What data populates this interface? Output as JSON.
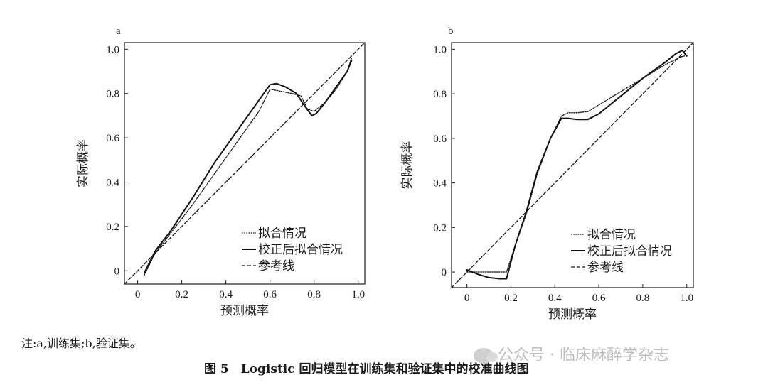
{
  "chart_data": [
    {
      "type": "line",
      "panel_label": "a",
      "xlabel": "预测概率",
      "ylabel": "实际概率",
      "xlim": [
        -0.06,
        1.03
      ],
      "ylim": [
        -0.06,
        1.03
      ],
      "xticks": [
        0,
        0.2,
        0.4,
        0.6,
        0.8,
        1.0
      ],
      "xtick_labels": [
        "0",
        "0.2",
        "0.4",
        "0.6",
        "0.8",
        "1.0"
      ],
      "yticks": [
        0,
        0.2,
        0.4,
        0.6,
        0.8,
        1.0
      ],
      "ytick_labels": [
        "0",
        "0.2",
        "0.4",
        "0.6",
        "0.8",
        "1.0"
      ],
      "legend_position": "bottom-right",
      "grid": false,
      "series": [
        {
          "name": "拟合情况",
          "style": "dotted",
          "x": [
            0.03,
            0.08,
            0.15,
            0.25,
            0.35,
            0.45,
            0.55,
            0.6,
            0.65,
            0.7,
            0.74,
            0.77,
            0.8,
            0.85,
            0.9,
            0.95,
            0.97
          ],
          "y": [
            -0.02,
            0.08,
            0.17,
            0.3,
            0.44,
            0.58,
            0.72,
            0.82,
            0.81,
            0.8,
            0.79,
            0.73,
            0.72,
            0.76,
            0.82,
            0.9,
            0.96
          ]
        },
        {
          "name": "校正后拟合情况",
          "style": "solid",
          "x": [
            0.03,
            0.08,
            0.15,
            0.25,
            0.35,
            0.45,
            0.55,
            0.6,
            0.63,
            0.67,
            0.72,
            0.76,
            0.79,
            0.81,
            0.85,
            0.9,
            0.95,
            0.97
          ],
          "y": [
            -0.01,
            0.09,
            0.18,
            0.33,
            0.49,
            0.63,
            0.77,
            0.84,
            0.845,
            0.83,
            0.8,
            0.74,
            0.7,
            0.71,
            0.76,
            0.83,
            0.9,
            0.95
          ]
        },
        {
          "name": "参考线",
          "style": "dashed",
          "x": [
            -0.06,
            1.03
          ],
          "y": [
            -0.06,
            1.03
          ]
        }
      ]
    },
    {
      "type": "line",
      "panel_label": "b",
      "xlabel": "预测概率",
      "ylabel": "实际概率",
      "xlim": [
        -0.07,
        1.03
      ],
      "ylim": [
        -0.07,
        1.03
      ],
      "xticks": [
        0,
        0.2,
        0.4,
        0.6,
        0.8,
        1.0
      ],
      "xtick_labels": [
        "0",
        "0.2",
        "0.4",
        "0.6",
        "0.8",
        "1.0"
      ],
      "yticks": [
        0,
        0.2,
        0.4,
        0.6,
        0.8,
        1.0
      ],
      "ytick_labels": [
        "0",
        "0.2",
        "0.4",
        "0.6",
        "0.8",
        "1.0"
      ],
      "legend_position": "bottom-right",
      "grid": false,
      "series": [
        {
          "name": "拟合情况",
          "style": "dotted",
          "x": [
            0.0,
            0.05,
            0.1,
            0.15,
            0.18,
            0.22,
            0.27,
            0.32,
            0.38,
            0.43,
            0.46,
            0.5,
            0.55,
            0.6,
            0.7,
            0.8,
            0.9,
            0.97,
            0.99
          ],
          "y": [
            0.0,
            0.0,
            0.0,
            0.0,
            0.0,
            0.12,
            0.26,
            0.44,
            0.6,
            0.7,
            0.715,
            0.715,
            0.72,
            0.75,
            0.81,
            0.87,
            0.93,
            0.965,
            0.97
          ]
        },
        {
          "name": "校正后拟合情况",
          "style": "solid",
          "x": [
            0.0,
            0.05,
            0.1,
            0.15,
            0.18,
            0.22,
            0.27,
            0.32,
            0.38,
            0.43,
            0.46,
            0.5,
            0.55,
            0.6,
            0.7,
            0.8,
            0.9,
            0.95,
            0.98,
            1.0
          ],
          "y": [
            0.01,
            -0.01,
            -0.025,
            -0.03,
            -0.03,
            0.12,
            0.27,
            0.45,
            0.6,
            0.69,
            0.69,
            0.685,
            0.685,
            0.71,
            0.79,
            0.87,
            0.94,
            0.98,
            0.995,
            0.97
          ]
        },
        {
          "name": "参考线",
          "style": "dashed",
          "x": [
            -0.07,
            1.03
          ],
          "y": [
            -0.07,
            1.03
          ]
        }
      ]
    }
  ],
  "caption": {
    "note": "注:a,训练集;b,验证集。",
    "title": "图 5　Logistic 回归模型在训练集和验证集中的校准曲线图"
  },
  "watermark": {
    "text": "公众号 · 临床麻醉学杂志",
    "icon": "wechat-icon"
  }
}
